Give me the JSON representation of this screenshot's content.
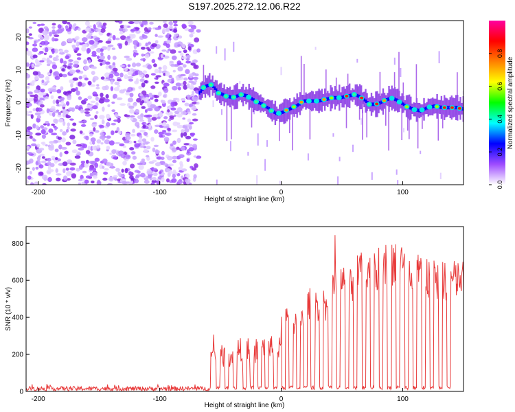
{
  "title": "S197.2025.272.12.06.R22",
  "chart_data": [
    {
      "type": "heatmap",
      "name": "spectrogram",
      "xlabel": "Height of straight line (km)",
      "ylabel": "Frequency (Hz)",
      "xlim": [
        -210,
        150
      ],
      "ylim": [
        -25,
        25
      ],
      "xticks": [
        -200,
        -100,
        0,
        100
      ],
      "yticks": [
        -20,
        -10,
        0,
        10,
        20
      ],
      "noise_region_x": [
        -210,
        -68
      ],
      "signal_ridge": {
        "x": [
          -68,
          -63,
          -58,
          -52,
          -46,
          -40,
          -34,
          -28,
          -22,
          -16,
          -10,
          -4,
          0,
          6,
          12,
          18,
          24,
          30,
          36,
          42,
          48,
          54,
          60,
          66,
          72,
          78,
          84,
          90,
          96,
          102,
          108,
          114,
          120,
          126,
          132,
          138,
          144,
          150
        ],
        "frequency": [
          3.0,
          5.0,
          5.5,
          3.0,
          2.0,
          1.5,
          2.5,
          2.0,
          0.5,
          -0.5,
          -2.0,
          -3.5,
          -3.0,
          -2.0,
          -1.0,
          0.5,
          0.5,
          0.5,
          1.0,
          1.5,
          1.5,
          2.0,
          2.5,
          1.5,
          -0.5,
          -0.5,
          0.5,
          1.5,
          0.5,
          -1.0,
          -2.0,
          -2.5,
          -1.5,
          -1.0,
          -1.5,
          -1.5,
          -1.5,
          -2.0
        ]
      },
      "colorbar": {
        "label": "Normalized spectral amplitude",
        "range": [
          0,
          1
        ],
        "ticks": [
          "0.0",
          "0.2",
          "0.4",
          "0.6",
          "0.8"
        ],
        "colors": [
          "#ffffff",
          "#9e4cff",
          "#0000ff",
          "#00ffff",
          "#00ff00",
          "#ffff00",
          "#ff8000",
          "#ff0000",
          "#ff00a0"
        ]
      }
    },
    {
      "type": "line",
      "name": "snr",
      "xlabel": "Height of straight line (km)",
      "ylabel": "SNR (10 * v/v)",
      "xlim": [
        -210,
        150
      ],
      "ylim": [
        0,
        890
      ],
      "xticks": [
        -200,
        -100,
        0,
        100
      ],
      "yticks": [
        0,
        200,
        400,
        600,
        800
      ],
      "color": "#e83a3a",
      "segments": [
        {
          "x0": -210,
          "x1": -58,
          "level": 15,
          "noise": 12
        },
        {
          "x0": -58,
          "x1": -40,
          "level": 190,
          "noise": 60
        },
        {
          "x0": -40,
          "x1": -20,
          "level": 220,
          "noise": 70
        },
        {
          "x0": -20,
          "x1": 0,
          "level": 230,
          "noise": 70
        },
        {
          "x0": 0,
          "x1": 20,
          "level": 380,
          "noise": 80
        },
        {
          "x0": 20,
          "x1": 40,
          "level": 470,
          "noise": 90
        },
        {
          "x0": 40,
          "x1": 60,
          "level": 580,
          "noise": 100
        },
        {
          "x0": 60,
          "x1": 80,
          "level": 640,
          "noise": 110
        },
        {
          "x0": 80,
          "x1": 100,
          "level": 690,
          "noise": 120
        },
        {
          "x0": 100,
          "x1": 120,
          "level": 640,
          "noise": 120
        },
        {
          "x0": 120,
          "x1": 150,
          "level": 600,
          "noise": 110
        }
      ],
      "dropouts_x": [
        -52,
        -45,
        -38,
        -30,
        -24,
        -18,
        -12,
        -5,
        2,
        8,
        14,
        20,
        26,
        33,
        40,
        47,
        54,
        61,
        68,
        75,
        82,
        89,
        96,
        103,
        110,
        117,
        124,
        131,
        138
      ]
    }
  ]
}
